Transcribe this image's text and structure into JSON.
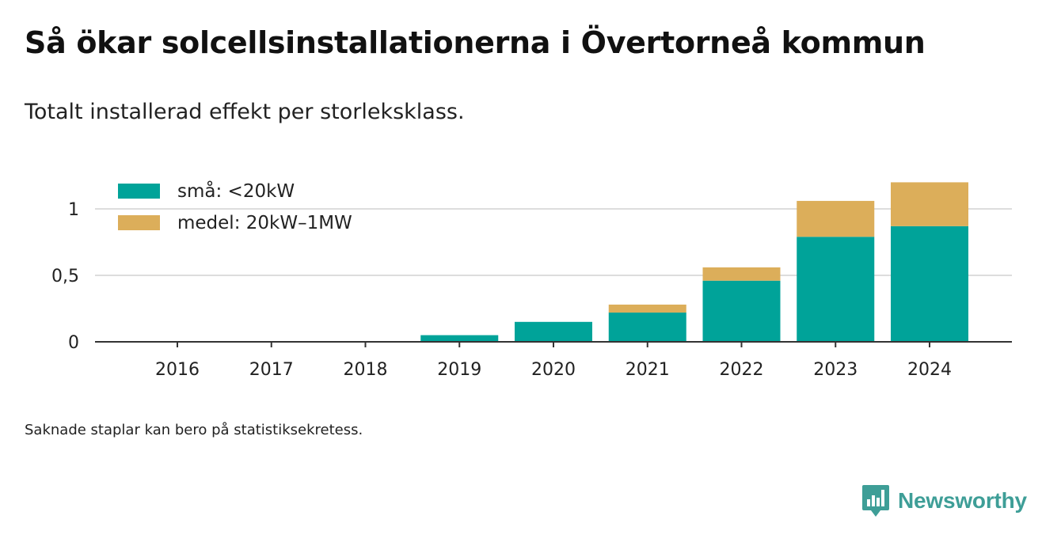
{
  "title": "Så ökar solcellsinstallationerna i Övertorneå kommun",
  "subtitle": "Totalt installerad effekt per storleksklass.",
  "footnote": "Saknade staplar kan bero på statistiksekretess.",
  "brand": {
    "name": "Newsworthy",
    "icon": "newsworthy-logo-icon"
  },
  "colors": {
    "small": "#00a399",
    "medium": "#dcae5a",
    "grid": "#dddddd",
    "axis": "#333333"
  },
  "chart_data": {
    "type": "bar",
    "stacked": true,
    "categories": [
      "2016",
      "2017",
      "2018",
      "2019",
      "2020",
      "2021",
      "2022",
      "2023",
      "2024"
    ],
    "series": [
      {
        "name": "små: <20kW",
        "values": [
          0,
          0,
          0,
          0.05,
          0.15,
          0.22,
          0.46,
          0.79,
          0.87
        ]
      },
      {
        "name": "medel: 20kW–1MW",
        "values": [
          0,
          0,
          0,
          0,
          0,
          0.06,
          0.1,
          0.27,
          0.33
        ]
      }
    ],
    "yticks": [
      0,
      0.5,
      1
    ],
    "ytick_labels": [
      "0",
      "0,5",
      "1"
    ],
    "ylim": [
      0,
      1.2
    ],
    "grid": true,
    "legend": "top-left"
  }
}
